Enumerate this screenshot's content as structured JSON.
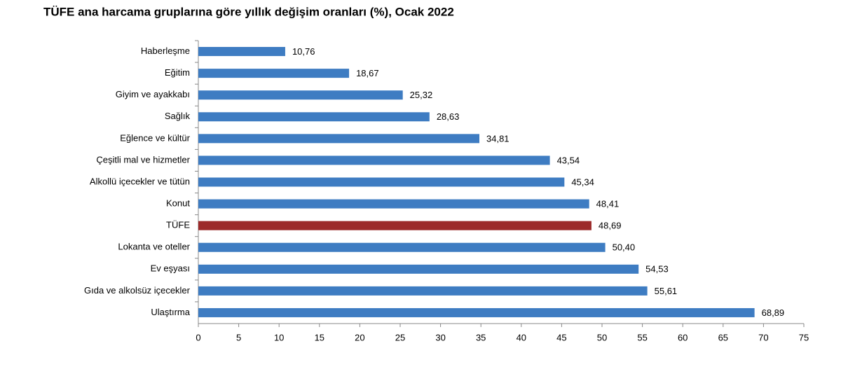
{
  "chart_data": {
    "type": "bar",
    "orientation": "horizontal",
    "title": "TÜFE ana harcama gruplarına göre yıllık değişim oranları (%), Ocak 2022",
    "categories": [
      "Haberleşme",
      "Eğitim",
      "Giyim ve ayakkabı",
      "Sağlık",
      "Eğlence ve kültür",
      "Çeşitli mal ve hizmetler",
      "Alkollü içecekler ve tütün",
      "Konut",
      "TÜFE",
      "Lokanta ve oteller",
      "Ev eşyası",
      "Gıda ve alkolsüz içecekler",
      "Ulaştırma"
    ],
    "values": [
      10.76,
      18.67,
      25.32,
      28.63,
      34.81,
      43.54,
      45.34,
      48.41,
      48.69,
      50.4,
      54.53,
      55.61,
      68.89
    ],
    "value_labels": [
      "10,76",
      "18,67",
      "25,32",
      "28,63",
      "34,81",
      "43,54",
      "45,34",
      "48,41",
      "48,69",
      "50,40",
      "54,53",
      "55,61",
      "68,89"
    ],
    "colors": [
      "#3e7cc2",
      "#3e7cc2",
      "#3e7cc2",
      "#3e7cc2",
      "#3e7cc2",
      "#3e7cc2",
      "#3e7cc2",
      "#3e7cc2",
      "#9c2a2a",
      "#3e7cc2",
      "#3e7cc2",
      "#3e7cc2",
      "#3e7cc2"
    ],
    "xlim": [
      0,
      75
    ],
    "xticks": [
      0,
      5,
      10,
      15,
      20,
      25,
      30,
      35,
      40,
      45,
      50,
      55,
      60,
      65,
      70,
      75
    ],
    "grid": false
  }
}
